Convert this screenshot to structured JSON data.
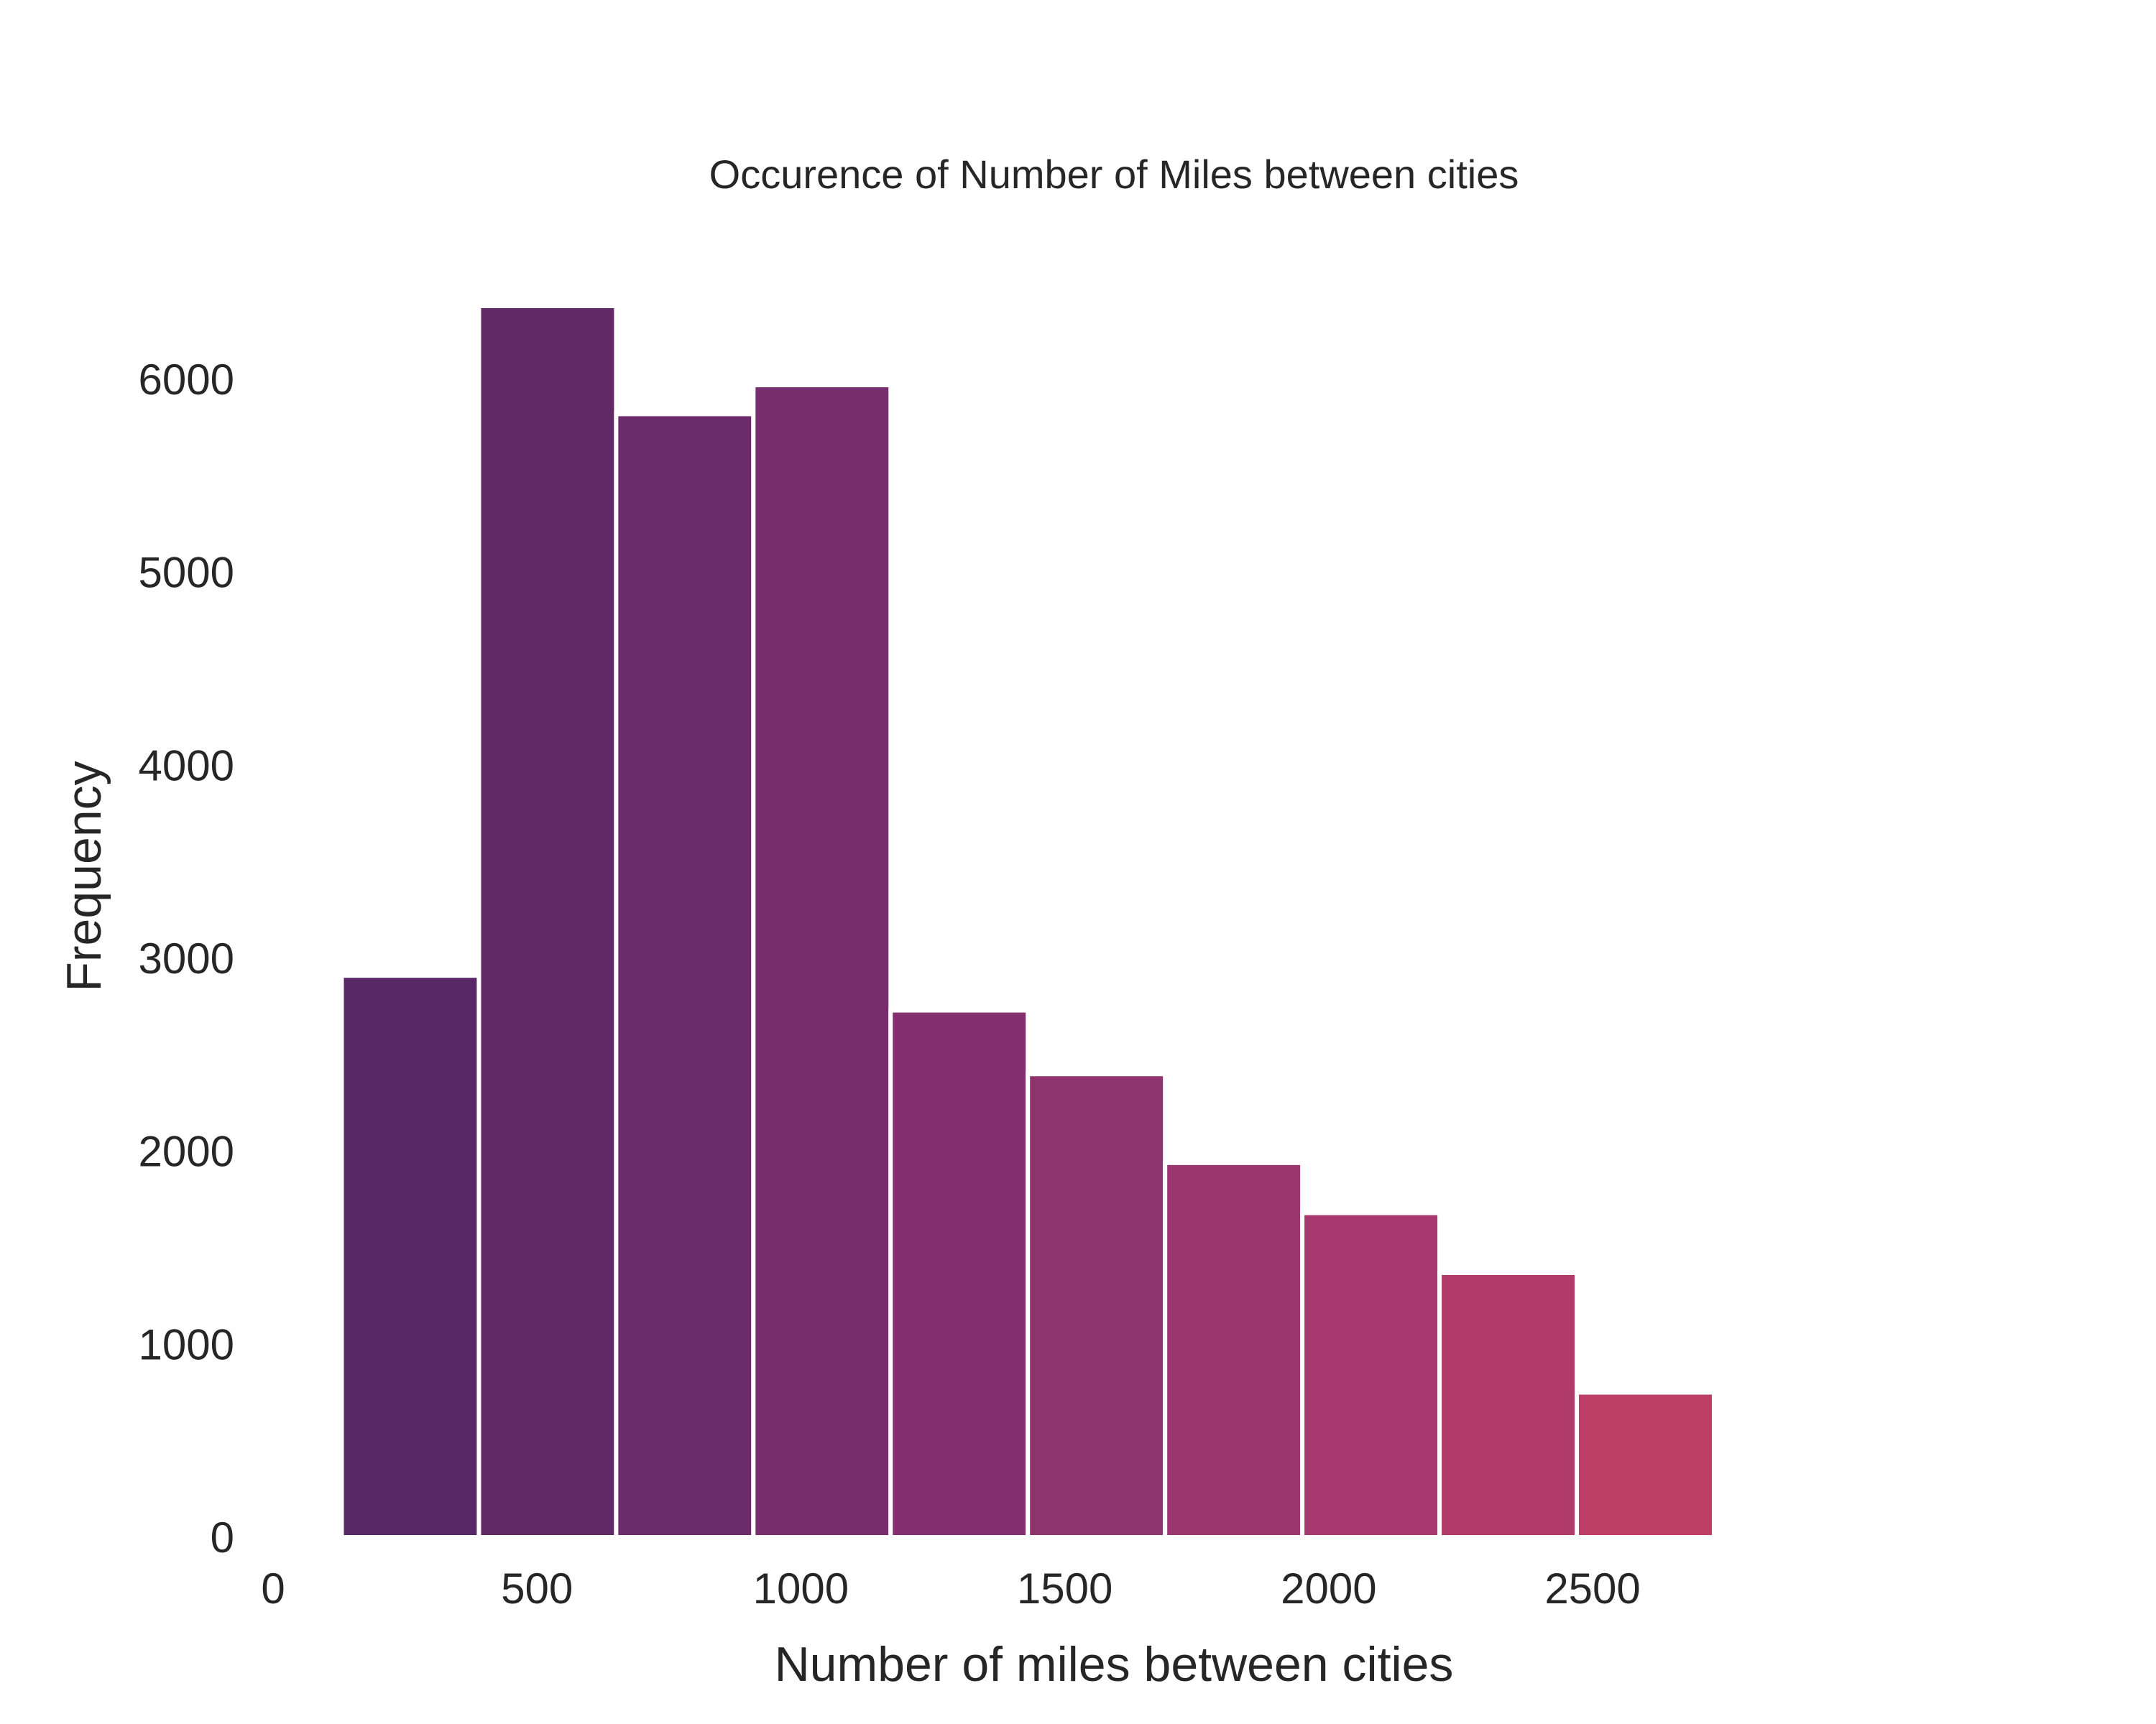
{
  "chart_data": {
    "type": "bar",
    "title": "Occurence of Number of Miles between cities",
    "xlabel": "Number of miles between cities",
    "ylabel": "Frequency",
    "xlim": [
      0,
      3050
    ],
    "ylim": [
      0,
      6700
    ],
    "grid": false,
    "bins": [
      {
        "start": 130,
        "end": 390,
        "value": 2910,
        "color": "#572865"
      },
      {
        "start": 390,
        "end": 650,
        "value": 6380,
        "color": "#612a67"
      },
      {
        "start": 650,
        "end": 910,
        "value": 5820,
        "color": "#6b2b6b"
      },
      {
        "start": 910,
        "end": 1170,
        "value": 5970,
        "color": "#782d6e"
      },
      {
        "start": 1170,
        "end": 1430,
        "value": 2730,
        "color": "#842f6f"
      },
      {
        "start": 1430,
        "end": 1690,
        "value": 2400,
        "color": "#8f336f"
      },
      {
        "start": 1690,
        "end": 1950,
        "value": 1940,
        "color": "#9a366e"
      },
      {
        "start": 1950,
        "end": 2210,
        "value": 1680,
        "color": "#a5386c"
      },
      {
        "start": 2210,
        "end": 2470,
        "value": 1370,
        "color": "#b13a69"
      },
      {
        "start": 2470,
        "end": 2730,
        "value": 750,
        "color": "#bd3e66"
      }
    ],
    "x_ticks": [
      {
        "value": 0,
        "label": "0"
      },
      {
        "value": 500,
        "label": "500"
      },
      {
        "value": 1000,
        "label": "1000"
      },
      {
        "value": 1500,
        "label": "1500"
      },
      {
        "value": 2000,
        "label": "2000"
      },
      {
        "value": 2500,
        "label": "2500"
      }
    ],
    "y_ticks": [
      {
        "value": 0,
        "label": "0"
      },
      {
        "value": 1000,
        "label": "1000"
      },
      {
        "value": 2000,
        "label": "2000"
      },
      {
        "value": 3000,
        "label": "3000"
      },
      {
        "value": 4000,
        "label": "4000"
      },
      {
        "value": 5000,
        "label": "5000"
      },
      {
        "value": 6000,
        "label": "6000"
      }
    ]
  }
}
